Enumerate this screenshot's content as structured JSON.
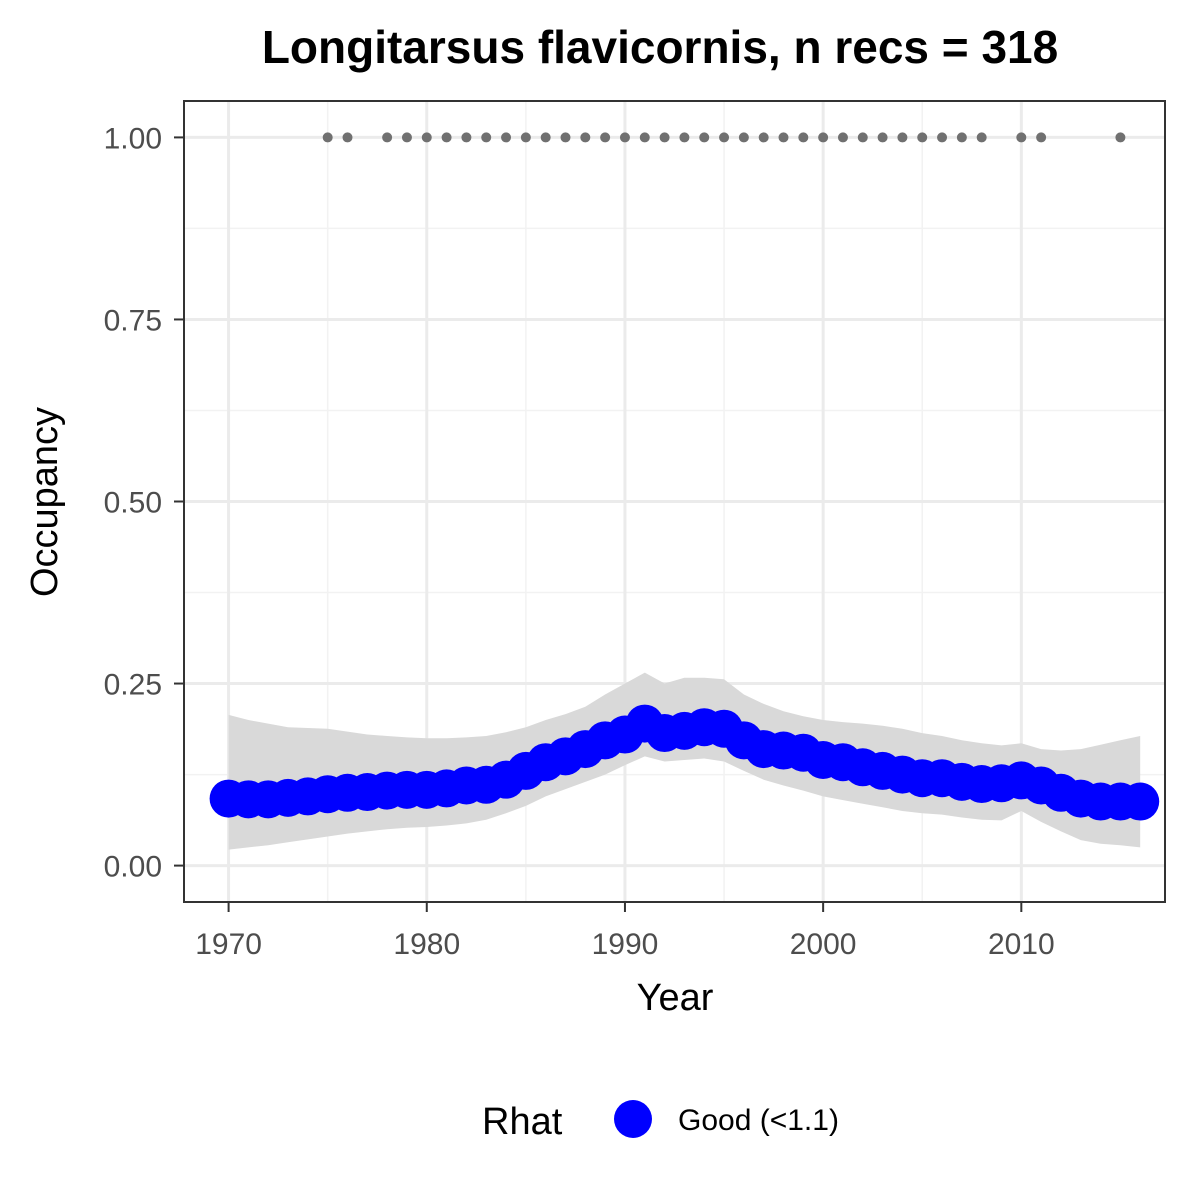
{
  "chart_data": {
    "type": "line",
    "title": "Longitarsus flavicornis, n recs = 318",
    "xlabel": "Year",
    "ylabel": "Occupancy",
    "xlim": [
      1967.75,
      2017.25
    ],
    "ylim": [
      -0.05,
      1.05
    ],
    "x_ticks": [
      1970,
      1980,
      1990,
      2000,
      2010
    ],
    "x_tick_labels": [
      "1970",
      "1980",
      "1990",
      "2000",
      "2010"
    ],
    "y_ticks": [
      0,
      0.25,
      0.5,
      0.75,
      1.0
    ],
    "y_tick_labels": [
      "0.00",
      "0.25",
      "0.50",
      "0.75",
      "1.00"
    ],
    "grid": true,
    "legend": {
      "title": "Rhat",
      "position": "bottom",
      "entries": [
        {
          "label": "Good (<1.1)",
          "color": "#0000ff"
        }
      ]
    },
    "colors": {
      "occupancy": "#0000ff",
      "ribbon": "#d9d9d9",
      "records": "#707070"
    },
    "x": [
      1970,
      1971,
      1972,
      1973,
      1974,
      1975,
      1976,
      1977,
      1978,
      1979,
      1980,
      1981,
      1982,
      1983,
      1984,
      1985,
      1986,
      1987,
      1988,
      1989,
      1990,
      1991,
      1992,
      1993,
      1994,
      1995,
      1996,
      1997,
      1998,
      1999,
      2000,
      2001,
      2002,
      2003,
      2004,
      2005,
      2006,
      2007,
      2008,
      2009,
      2010,
      2011,
      2012,
      2013,
      2014,
      2015,
      2016
    ],
    "series": [
      {
        "values": [
          0.092,
          0.091,
          0.091,
          0.093,
          0.095,
          0.098,
          0.1,
          0.101,
          0.103,
          0.104,
          0.104,
          0.106,
          0.11,
          0.111,
          0.118,
          0.13,
          0.142,
          0.15,
          0.16,
          0.172,
          0.18,
          0.195,
          0.182,
          0.185,
          0.19,
          0.188,
          0.172,
          0.16,
          0.158,
          0.155,
          0.145,
          0.142,
          0.135,
          0.13,
          0.125,
          0.12,
          0.12,
          0.115,
          0.112,
          0.113,
          0.117,
          0.11,
          0.1,
          0.092,
          0.088,
          0.088,
          0.088
        ],
        "lower": [
          0.022,
          0.025,
          0.028,
          0.032,
          0.036,
          0.04,
          0.044,
          0.047,
          0.05,
          0.052,
          0.053,
          0.055,
          0.058,
          0.063,
          0.072,
          0.082,
          0.095,
          0.105,
          0.115,
          0.125,
          0.138,
          0.15,
          0.143,
          0.145,
          0.147,
          0.143,
          0.13,
          0.118,
          0.11,
          0.103,
          0.095,
          0.09,
          0.085,
          0.08,
          0.075,
          0.072,
          0.07,
          0.066,
          0.063,
          0.062,
          0.075,
          0.06,
          0.047,
          0.035,
          0.03,
          0.028,
          0.025
        ],
        "upper": [
          0.207,
          0.2,
          0.195,
          0.19,
          0.189,
          0.188,
          0.184,
          0.18,
          0.178,
          0.176,
          0.175,
          0.175,
          0.176,
          0.178,
          0.183,
          0.19,
          0.2,
          0.208,
          0.218,
          0.235,
          0.25,
          0.265,
          0.25,
          0.258,
          0.258,
          0.256,
          0.235,
          0.222,
          0.212,
          0.205,
          0.2,
          0.197,
          0.195,
          0.192,
          0.188,
          0.182,
          0.178,
          0.172,
          0.168,
          0.165,
          0.168,
          0.16,
          0.158,
          0.16,
          0.166,
          0.172,
          0.178
        ]
      }
    ],
    "records": {
      "value": 1.0,
      "years": [
        1975,
        1976,
        1978,
        1979,
        1980,
        1981,
        1982,
        1983,
        1984,
        1985,
        1986,
        1987,
        1988,
        1989,
        1990,
        1991,
        1992,
        1993,
        1994,
        1995,
        1996,
        1997,
        1998,
        1999,
        2000,
        2001,
        2002,
        2003,
        2004,
        2005,
        2006,
        2007,
        2008,
        2010,
        2011,
        2015
      ]
    }
  }
}
